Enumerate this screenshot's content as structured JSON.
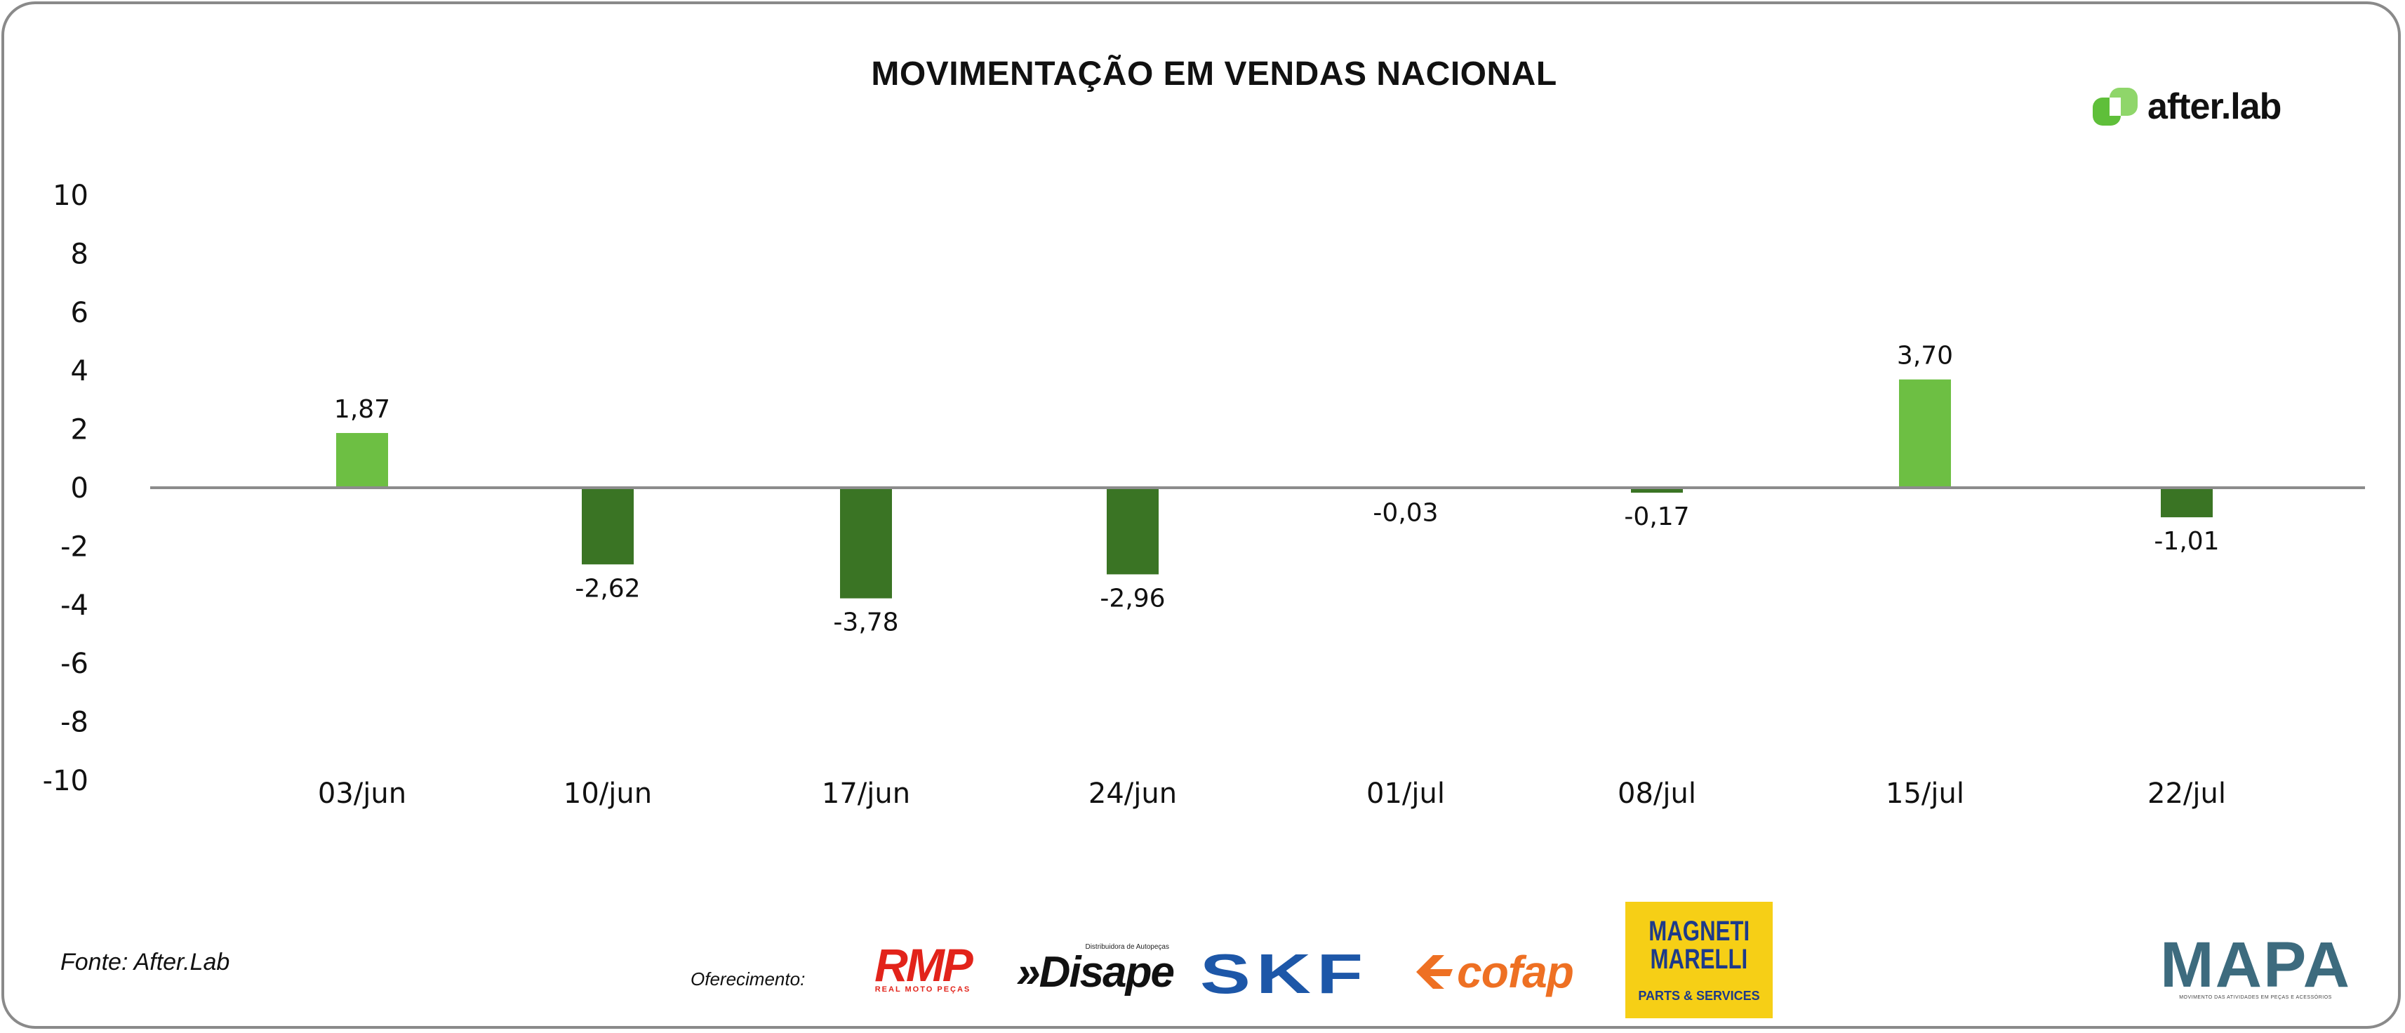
{
  "chart_data": {
    "type": "bar",
    "title": "MOVIMENTAÇÃO EM VENDAS NACIONAL",
    "categories": [
      "03/jun",
      "10/jun",
      "17/jun",
      "24/jun",
      "01/jul",
      "08/jul",
      "15/jul",
      "22/jul"
    ],
    "values": [
      1.87,
      -2.62,
      -3.78,
      -2.96,
      -0.03,
      -0.17,
      3.7,
      -1.01
    ],
    "value_labels": [
      "1,87",
      "-2,62",
      "-3,78",
      "-2,96",
      "-0,03",
      "-0,17",
      "3,70",
      "-1,01"
    ],
    "ylim": [
      -10,
      10
    ],
    "yticks": [
      10,
      8,
      6,
      4,
      2,
      0,
      -2,
      -4,
      -6,
      -8,
      -10
    ],
    "grid": false,
    "legend": "none",
    "colors": {
      "positive": "#6dbf43",
      "negative": "#3a7424",
      "zero_line": "#8c8c8c"
    }
  },
  "brand": {
    "name": "after.lab",
    "icon": "afterlab-logo-icon",
    "color": "#5fbf3a"
  },
  "footer": {
    "source": "Fonte: After.Lab",
    "offer_label": "Oferecimento:",
    "sponsors": {
      "rmp": {
        "name": "RMP",
        "tagline": "REAL MOTO PEÇAS"
      },
      "disape": {
        "name": "»Disape",
        "tagline": "Distribuidora de Autopeças"
      },
      "skf": {
        "name": "SKF"
      },
      "cofap": {
        "name": "cofap"
      },
      "magneti": {
        "name_line1": "MAGNETI",
        "name_line2": "MARELLI",
        "tagline": "PARTS & SERVICES"
      },
      "mapa": {
        "name": "MAPA",
        "tagline": "MOVIMENTO DAS ATIVIDADES EM PEÇAS E ACESSÓRIOS"
      }
    }
  }
}
